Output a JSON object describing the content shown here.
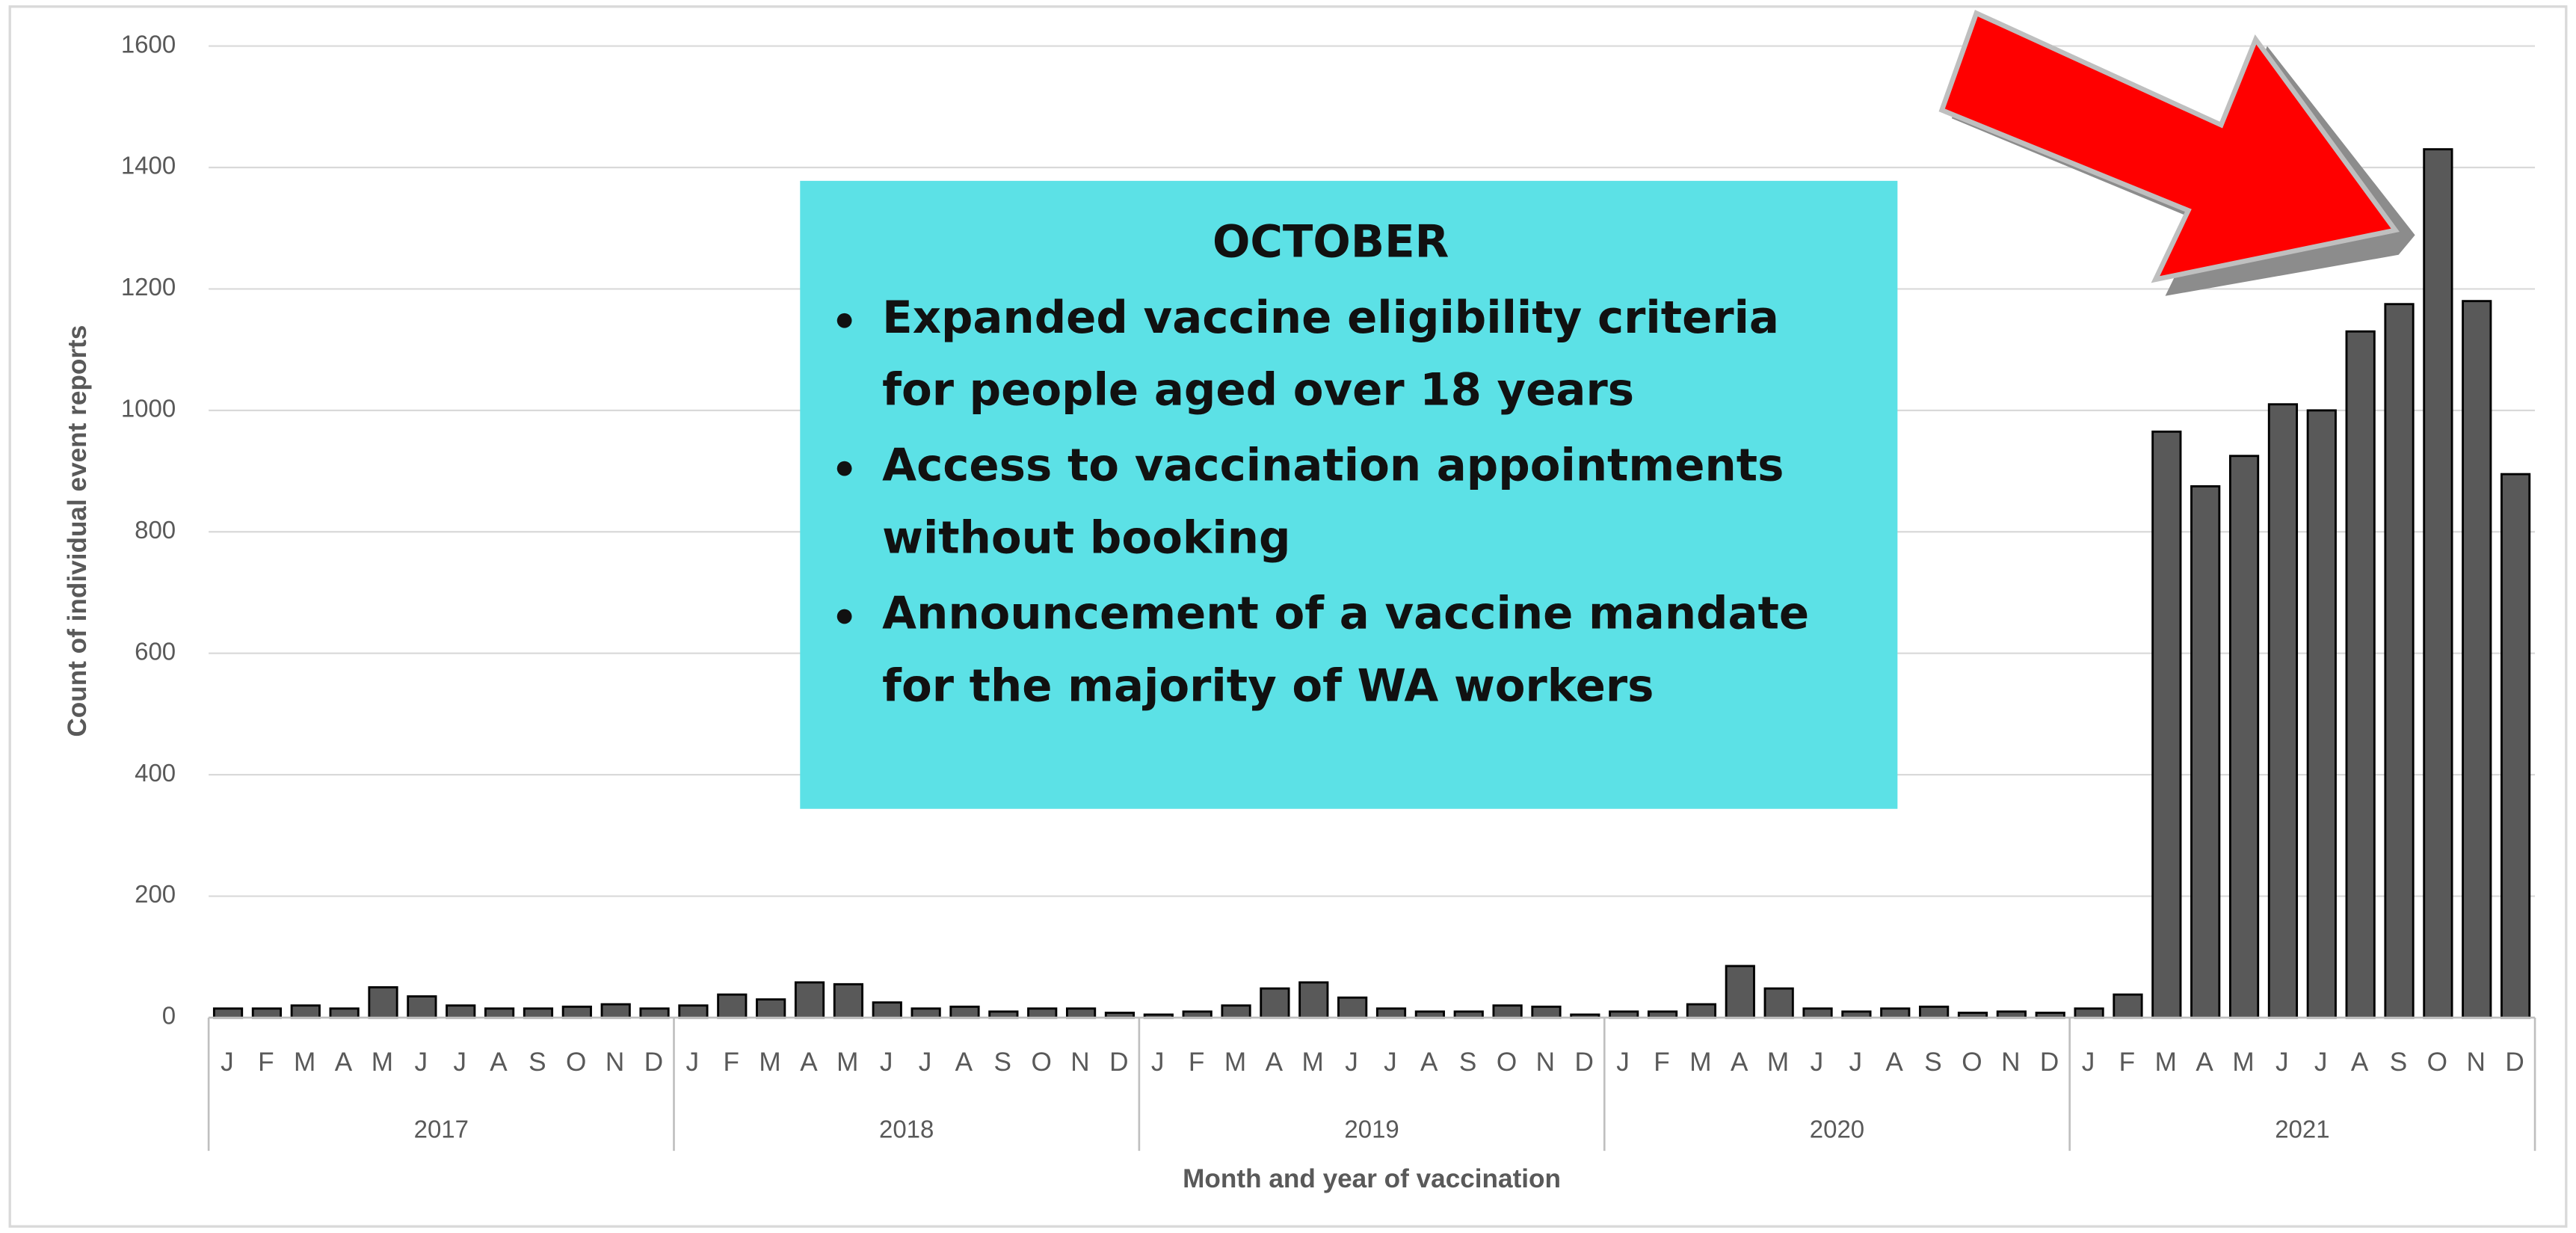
{
  "chart_data": {
    "type": "bar",
    "categories": [
      "J",
      "F",
      "M",
      "A",
      "M",
      "J",
      "J",
      "A",
      "S",
      "O",
      "N",
      "D",
      "J",
      "F",
      "M",
      "A",
      "M",
      "J",
      "J",
      "A",
      "S",
      "O",
      "N",
      "D",
      "J",
      "F",
      "M",
      "A",
      "M",
      "J",
      "J",
      "A",
      "S",
      "O",
      "N",
      "D",
      "J",
      "F",
      "M",
      "A",
      "M",
      "J",
      "J",
      "A",
      "S",
      "O",
      "N",
      "D",
      "J",
      "F",
      "M",
      "A",
      "M",
      "J",
      "J",
      "A",
      "S",
      "O",
      "N",
      "D"
    ],
    "groups": [
      "2017",
      "2018",
      "2019",
      "2020",
      "2021"
    ],
    "values": [
      15,
      15,
      20,
      15,
      50,
      35,
      20,
      15,
      15,
      18,
      22,
      15,
      20,
      38,
      30,
      58,
      55,
      25,
      15,
      18,
      10,
      15,
      15,
      8,
      5,
      10,
      20,
      48,
      58,
      33,
      15,
      10,
      10,
      20,
      18,
      5,
      10,
      10,
      22,
      85,
      48,
      15,
      10,
      15,
      18,
      8,
      10,
      8,
      15,
      38,
      965,
      875,
      925,
      1010,
      1000,
      1130,
      1175,
      1430,
      1180,
      895
    ],
    "color": "#595959",
    "ylim": [
      0,
      1600
    ],
    "yticks": [
      0,
      200,
      400,
      600,
      800,
      1000,
      1200,
      1400,
      1600
    ],
    "grid": true,
    "y_label": "Count of individual event reports",
    "x_label": "Month and year of vaccination",
    "annotation": {
      "heading": "OCTOBER",
      "items": [
        [
          "Expanded vaccine eligibility criteria",
          "for people aged over 18 years"
        ],
        [
          "Access to vaccination appointments",
          "without booking"
        ],
        [
          "Announcement of a vaccine mandate",
          "for the majority of WA workers"
        ]
      ]
    }
  }
}
